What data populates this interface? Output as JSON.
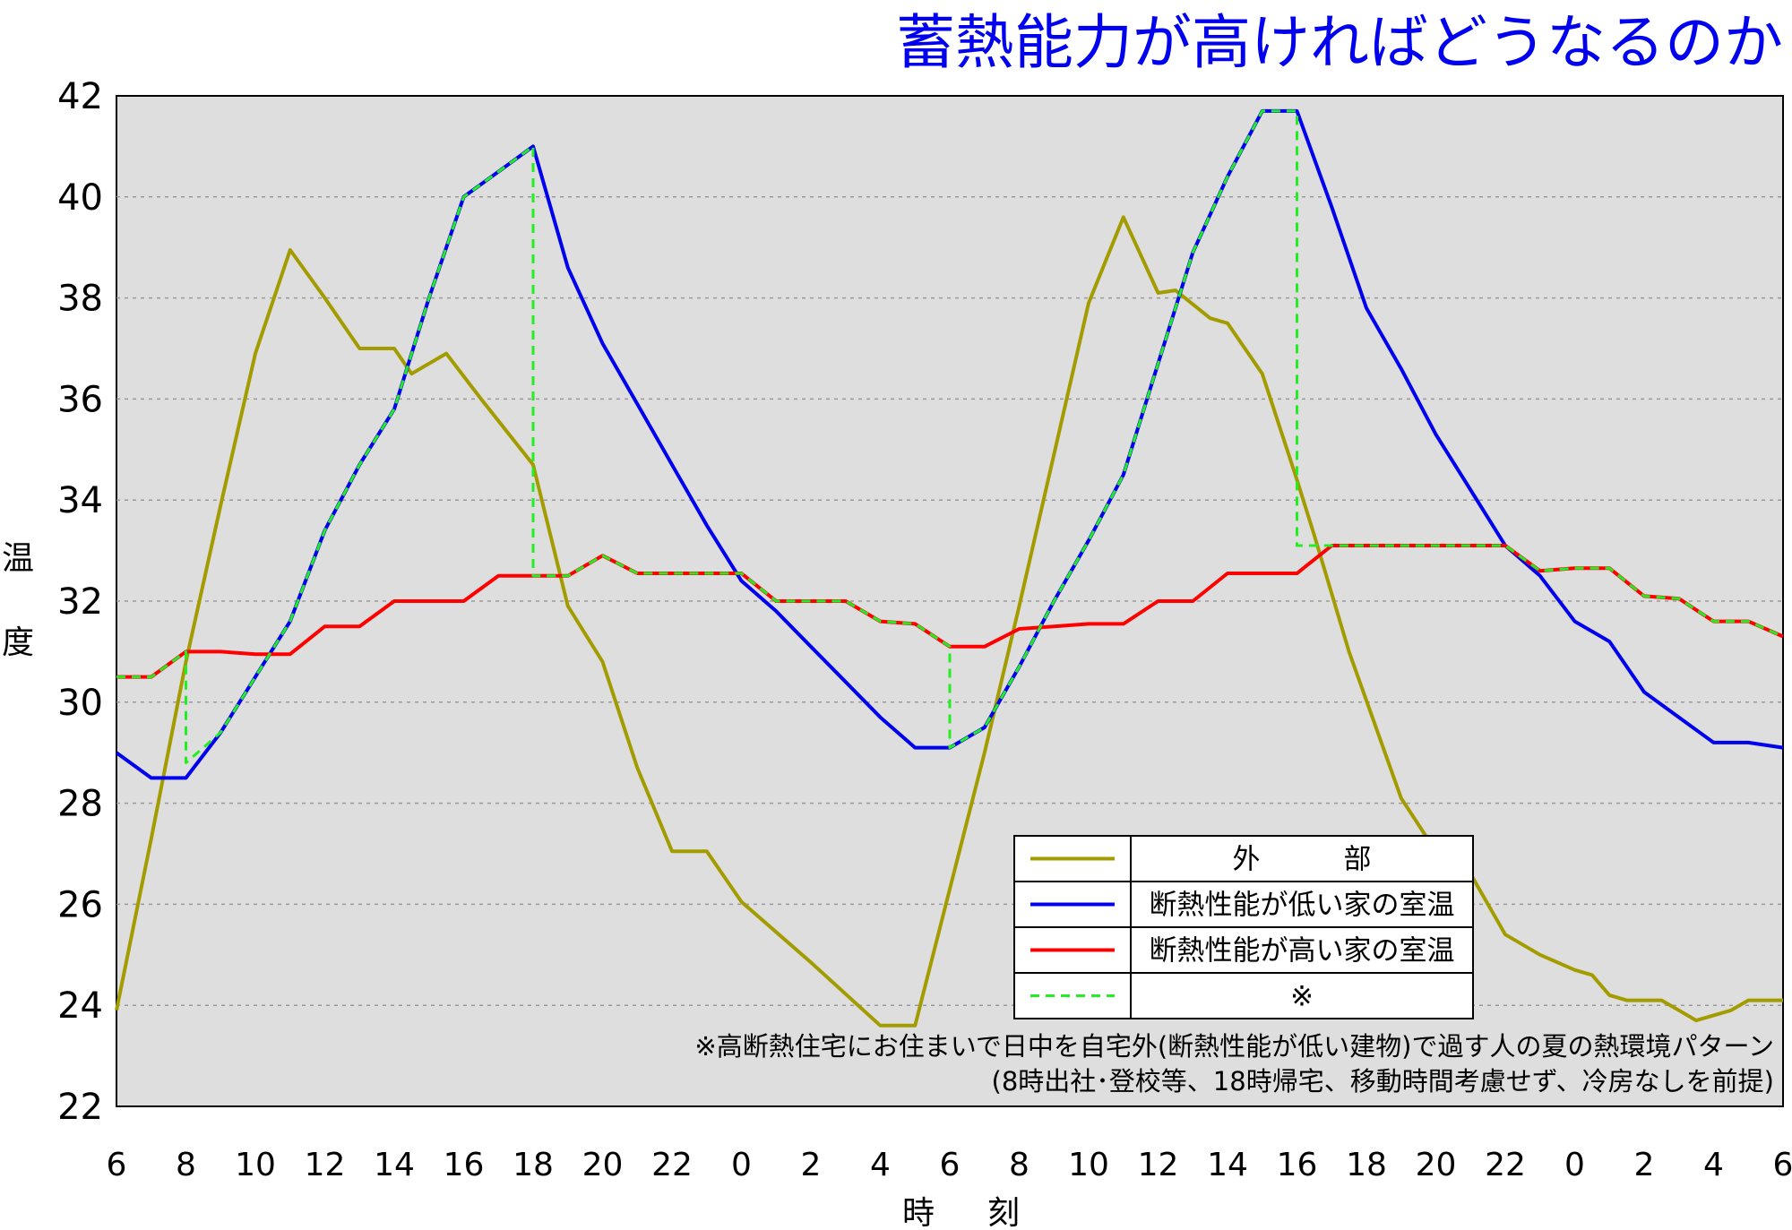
{
  "chart_data": {
    "type": "line",
    "title": "蓄熱能力が高ければどうなるのか",
    "ylabel": "温度",
    "xlabel": "時刻",
    "ylim": [
      22,
      42
    ],
    "yticks": [
      22,
      24,
      26,
      28,
      30,
      32,
      34,
      36,
      38,
      40,
      42
    ],
    "xticks": [
      "6",
      "8",
      "10",
      "12",
      "14",
      "16",
      "18",
      "20",
      "22",
      "0",
      "2",
      "4",
      "6",
      "8",
      "10",
      "12",
      "14",
      "16",
      "18",
      "20",
      "22",
      "0",
      "2",
      "4",
      "6"
    ],
    "grid": true,
    "legend_position": "lower-right",
    "series": [
      {
        "name": "外　　　部",
        "color": "#a39c00",
        "dashed": false,
        "x": [
          6,
          7,
          8,
          9,
          10,
          11,
          12,
          13,
          14,
          14.5,
          15.5,
          16.5,
          18,
          19,
          20,
          21,
          22,
          23,
          24,
          26,
          28,
          29,
          30,
          31,
          32,
          33,
          34,
          35,
          36,
          36.5,
          37.5,
          38,
          39,
          40,
          40.5,
          41.5,
          43,
          44,
          45,
          46,
          47,
          48,
          48.5,
          49,
          49.5,
          50.5,
          51,
          51.5,
          52.5,
          53,
          53.5,
          54
        ],
        "y": [
          23.9,
          27.3,
          30.8,
          33.9,
          36.9,
          38.95,
          38.0,
          37.0,
          37.0,
          36.5,
          36.9,
          36.0,
          34.7,
          31.9,
          30.8,
          28.7,
          27.05,
          27.05,
          26.05,
          24.85,
          23.6,
          23.6,
          26.3,
          29.0,
          31.9,
          34.9,
          37.9,
          39.6,
          38.1,
          38.15,
          37.6,
          37.5,
          36.5,
          34.4,
          33.3,
          31.0,
          28.1,
          27.05,
          26.6,
          25.4,
          25.0,
          24.7,
          24.6,
          24.2,
          24.1,
          24.1,
          23.9,
          23.7,
          23.9,
          24.1,
          24.1,
          24.1
        ]
      },
      {
        "name": "断熱性能が低い家の室温",
        "color": "#0000ee",
        "dashed": false,
        "x": [
          6,
          7,
          8,
          9,
          10,
          11,
          12,
          13,
          14,
          15,
          16,
          17,
          18,
          19,
          20,
          21,
          22,
          23,
          24,
          25,
          26,
          27,
          28,
          29,
          30,
          31,
          32,
          33,
          34,
          35,
          36,
          37,
          38,
          39,
          40,
          41,
          42,
          43,
          44,
          45,
          46,
          47,
          48,
          49,
          50,
          51,
          52,
          53,
          54
        ],
        "y": [
          29.0,
          28.5,
          28.5,
          29.4,
          30.5,
          31.6,
          33.4,
          34.7,
          35.8,
          38.0,
          40.0,
          40.5,
          41.0,
          38.6,
          37.1,
          35.9,
          34.7,
          33.5,
          32.4,
          31.8,
          31.1,
          30.4,
          29.7,
          29.1,
          29.1,
          29.5,
          30.7,
          32.0,
          33.2,
          34.5,
          36.7,
          38.9,
          40.4,
          41.7,
          41.7,
          39.8,
          37.8,
          36.6,
          35.3,
          34.2,
          33.1,
          32.5,
          31.6,
          31.2,
          30.2,
          29.7,
          29.2,
          29.2,
          29.1
        ]
      },
      {
        "name": "断熱性能が高い家の室温",
        "color": "#ff0000",
        "dashed": false,
        "x": [
          6,
          7,
          8,
          9,
          10,
          11,
          12,
          13,
          14,
          15,
          16,
          17,
          18,
          19,
          20,
          21,
          22,
          23,
          24,
          25,
          26,
          27,
          28,
          29,
          30,
          31,
          32,
          33,
          34,
          35,
          36,
          37,
          38,
          39,
          40,
          41,
          42,
          43,
          44,
          45,
          46,
          47,
          48,
          49,
          50,
          51,
          52,
          53,
          54
        ],
        "y": [
          30.5,
          30.5,
          31.0,
          31.0,
          30.95,
          30.95,
          31.5,
          31.5,
          32.0,
          32.0,
          32.0,
          32.5,
          32.5,
          32.5,
          32.9,
          32.55,
          32.55,
          32.55,
          32.55,
          32.0,
          32.0,
          32.0,
          31.6,
          31.55,
          31.1,
          31.1,
          31.45,
          31.5,
          31.55,
          31.55,
          32.0,
          32.0,
          32.55,
          32.55,
          32.55,
          33.1,
          33.1,
          33.1,
          33.1,
          33.1,
          33.1,
          32.6,
          32.65,
          32.65,
          32.1,
          32.05,
          31.6,
          31.6,
          31.3
        ]
      },
      {
        "name": "※",
        "color": "#22ee22",
        "dashed": true,
        "x": [
          6,
          7,
          8,
          8,
          9,
          10,
          11,
          12,
          13,
          14,
          15,
          16,
          17,
          18,
          18,
          19,
          20,
          21,
          22,
          23,
          24,
          25,
          26,
          27,
          28,
          29,
          30,
          30,
          31,
          32,
          33,
          34,
          35,
          36,
          37,
          38,
          39,
          40,
          40,
          41,
          42,
          43,
          44,
          45,
          46,
          47,
          48,
          49,
          50,
          51,
          52,
          53,
          54
        ],
        "y": [
          30.5,
          30.5,
          31.0,
          28.8,
          29.4,
          30.5,
          31.6,
          33.4,
          34.7,
          35.8,
          38.0,
          40.0,
          40.5,
          41.0,
          32.5,
          32.5,
          32.9,
          32.55,
          32.55,
          32.55,
          32.55,
          32.0,
          32.0,
          32.0,
          31.6,
          31.55,
          31.1,
          29.1,
          29.5,
          30.7,
          32.0,
          33.2,
          34.5,
          36.7,
          38.9,
          40.4,
          41.7,
          41.7,
          33.1,
          33.1,
          33.1,
          33.1,
          33.1,
          33.1,
          33.1,
          32.6,
          32.65,
          32.65,
          32.1,
          32.05,
          31.6,
          31.6,
          31.3
        ]
      }
    ],
    "annotation_lines": [
      "※高断熱住宅にお住まいで日中を自宅外(断熱性能が低い建物)で過す人の夏の熱環境パターン",
      "(8時出社･登校等、18時帰宅、移動時間考慮せず、冷房なしを前提)"
    ]
  },
  "colors": {
    "plot_background": "#dedede",
    "grid": "#9a9a9a",
    "title": "#0000ee"
  }
}
